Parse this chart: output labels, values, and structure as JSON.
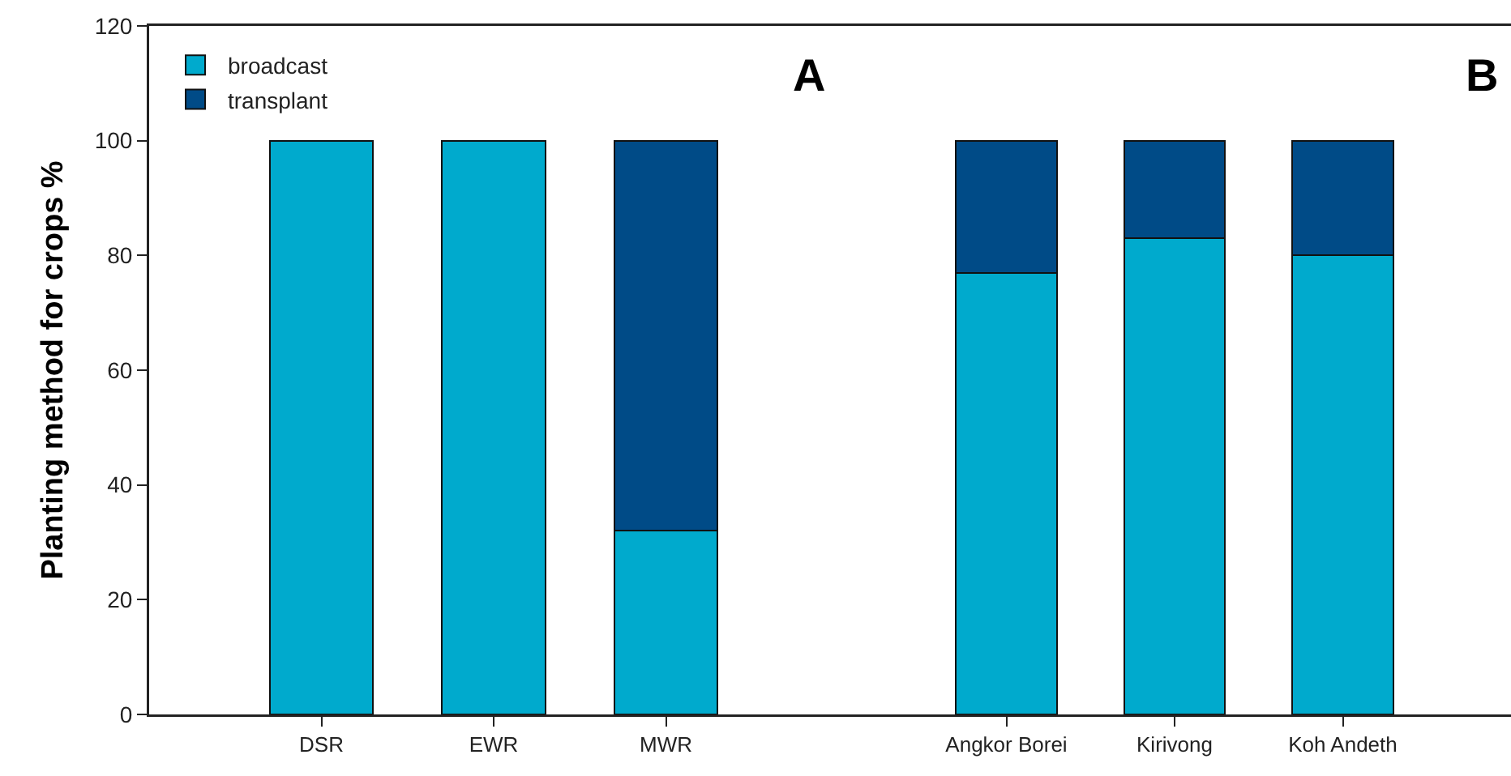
{
  "chart_data": [
    {
      "type": "bar",
      "stacked": true,
      "categories": [
        "DSR",
        "EWR",
        "MWR"
      ],
      "series": [
        {
          "name": "broadcast",
          "color": "#00aacd",
          "values": [
            100,
            100,
            32
          ]
        },
        {
          "name": "transplant",
          "color": "#004b87",
          "values": [
            null,
            null,
            68
          ]
        }
      ],
      "ylabel": "Planting method for crops %",
      "ylim": [
        0,
        120
      ],
      "yticks": [
        0,
        20,
        40,
        60,
        80,
        100,
        120
      ],
      "legend": "top left",
      "annotations": [
        "A"
      ]
    },
    {
      "type": "bar",
      "stacked": true,
      "categories": [
        "Angkor Borei",
        "Kirivong",
        "Koh Andeth"
      ],
      "series": [
        {
          "color": "#00aacd",
          "values": [
            77,
            83,
            80
          ]
        },
        {
          "color": "#004b87",
          "values": [
            23,
            17,
            20
          ]
        }
      ],
      "ylim": [
        0,
        120
      ],
      "yticks": [
        0,
        20,
        40,
        60,
        80,
        100,
        120
      ],
      "tick_labels": "x",
      "legend": false,
      "annotations": [
        "B"
      ]
    }
  ]
}
